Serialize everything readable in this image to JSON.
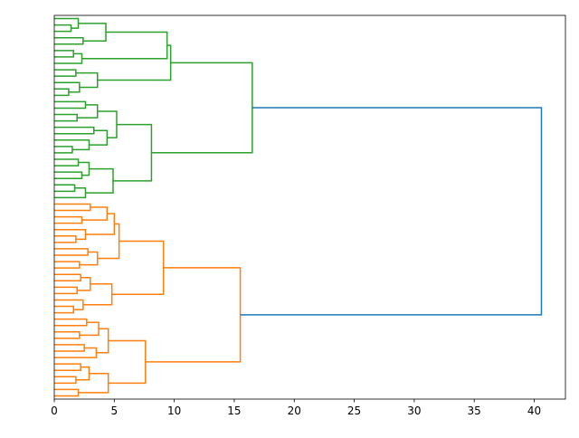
{
  "chart_data": {
    "type": "dendrogram",
    "orientation": "right",
    "xlim": [
      0,
      42.6
    ],
    "xticks": [
      0,
      5,
      10,
      15,
      20,
      25,
      30,
      35,
      40
    ],
    "tree": {
      "height": 40.6,
      "color": "#1f77b4",
      "children": [
        {
          "height": 16.5,
          "color": "#2ca02c",
          "children": [
            {
              "height": 9.7,
              "children": [
                {
                  "height": 9.4,
                  "children": [
                    {
                      "height": 4.3,
                      "children": [
                        {
                          "height": 2.0,
                          "children": [
                            {
                              "height": 0
                            },
                            {
                              "height": 1.4,
                              "children": [
                                {
                                  "height": 0
                                },
                                {
                                  "height": 0
                                }
                              ]
                            }
                          ]
                        },
                        {
                          "height": 2.4,
                          "children": [
                            {
                              "height": 0
                            },
                            {
                              "height": 0
                            }
                          ]
                        }
                      ]
                    },
                    {
                      "height": 2.3,
                      "children": [
                        {
                          "height": 1.6,
                          "children": [
                            {
                              "height": 0
                            },
                            {
                              "height": 0
                            }
                          ]
                        },
                        {
                          "height": 0
                        }
                      ]
                    }
                  ]
                },
                {
                  "height": 3.6,
                  "children": [
                    {
                      "height": 1.8,
                      "children": [
                        {
                          "height": 0
                        },
                        {
                          "height": 0
                        }
                      ]
                    },
                    {
                      "height": 2.1,
                      "children": [
                        {
                          "height": 0
                        },
                        {
                          "height": 1.2,
                          "children": [
                            {
                              "height": 0
                            },
                            {
                              "height": 0
                            }
                          ]
                        }
                      ]
                    }
                  ]
                }
              ]
            },
            {
              "height": 8.1,
              "children": [
                {
                  "height": 5.2,
                  "children": [
                    {
                      "height": 3.6,
                      "children": [
                        {
                          "height": 2.6,
                          "children": [
                            {
                              "height": 0
                            },
                            {
                              "height": 0
                            }
                          ]
                        },
                        {
                          "height": 1.9,
                          "children": [
                            {
                              "height": 0
                            },
                            {
                              "height": 0
                            }
                          ]
                        }
                      ]
                    },
                    {
                      "height": 4.4,
                      "children": [
                        {
                          "height": 3.3,
                          "children": [
                            {
                              "height": 0
                            },
                            {
                              "height": 0
                            }
                          ]
                        },
                        {
                          "height": 2.9,
                          "children": [
                            {
                              "height": 0
                            },
                            {
                              "height": 1.5,
                              "children": [
                                {
                                  "height": 0
                                },
                                {
                                  "height": 0
                                }
                              ]
                            }
                          ]
                        }
                      ]
                    }
                  ]
                },
                {
                  "height": 4.9,
                  "children": [
                    {
                      "height": 2.9,
                      "children": [
                        {
                          "height": 2.0,
                          "children": [
                            {
                              "height": 0
                            },
                            {
                              "height": 0
                            }
                          ]
                        },
                        {
                          "height": 2.3,
                          "children": [
                            {
                              "height": 0
                            },
                            {
                              "height": 0
                            }
                          ]
                        }
                      ]
                    },
                    {
                      "height": 2.6,
                      "children": [
                        {
                          "height": 1.7,
                          "children": [
                            {
                              "height": 0
                            },
                            {
                              "height": 0
                            }
                          ]
                        },
                        {
                          "height": 0
                        }
                      ]
                    }
                  ]
                }
              ]
            }
          ]
        },
        {
          "height": 15.5,
          "color": "#ff7f0e",
          "children": [
            {
              "height": 9.1,
              "children": [
                {
                  "height": 5.4,
                  "children": [
                    {
                      "height": 5.0,
                      "children": [
                        {
                          "height": 4.4,
                          "children": [
                            {
                              "height": 3.0,
                              "children": [
                                {
                                  "height": 0
                                },
                                {
                                  "height": 0
                                }
                              ]
                            },
                            {
                              "height": 2.3,
                              "children": [
                                {
                                  "height": 0
                                },
                                {
                                  "height": 0
                                }
                              ]
                            }
                          ]
                        },
                        {
                          "height": 2.6,
                          "children": [
                            {
                              "height": 0
                            },
                            {
                              "height": 1.8,
                              "children": [
                                {
                                  "height": 0
                                },
                                {
                                  "height": 0
                                }
                              ]
                            }
                          ]
                        }
                      ]
                    },
                    {
                      "height": 3.6,
                      "children": [
                        {
                          "height": 2.8,
                          "children": [
                            {
                              "height": 0
                            },
                            {
                              "height": 0
                            }
                          ]
                        },
                        {
                          "height": 2.1,
                          "children": [
                            {
                              "height": 0
                            },
                            {
                              "height": 0
                            }
                          ]
                        }
                      ]
                    }
                  ]
                },
                {
                  "height": 4.8,
                  "children": [
                    {
                      "height": 3.0,
                      "children": [
                        {
                          "height": 2.2,
                          "children": [
                            {
                              "height": 0
                            },
                            {
                              "height": 0
                            }
                          ]
                        },
                        {
                          "height": 1.9,
                          "children": [
                            {
                              "height": 0
                            },
                            {
                              "height": 0
                            }
                          ]
                        }
                      ]
                    },
                    {
                      "height": 2.4,
                      "children": [
                        {
                          "height": 0
                        },
                        {
                          "height": 1.6,
                          "children": [
                            {
                              "height": 0
                            },
                            {
                              "height": 0
                            }
                          ]
                        }
                      ]
                    }
                  ]
                }
              ]
            },
            {
              "height": 7.6,
              "children": [
                {
                  "height": 4.5,
                  "children": [
                    {
                      "height": 3.7,
                      "children": [
                        {
                          "height": 2.7,
                          "children": [
                            {
                              "height": 0
                            },
                            {
                              "height": 0
                            }
                          ]
                        },
                        {
                          "height": 2.1,
                          "children": [
                            {
                              "height": 0
                            },
                            {
                              "height": 0
                            }
                          ]
                        }
                      ]
                    },
                    {
                      "height": 3.5,
                      "children": [
                        {
                          "height": 2.5,
                          "children": [
                            {
                              "height": 0
                            },
                            {
                              "height": 0
                            }
                          ]
                        },
                        {
                          "height": 0
                        }
                      ]
                    }
                  ]
                },
                {
                  "height": 4.5,
                  "children": [
                    {
                      "height": 2.9,
                      "children": [
                        {
                          "height": 2.2,
                          "children": [
                            {
                              "height": 0
                            },
                            {
                              "height": 0
                            }
                          ]
                        },
                        {
                          "height": 1.8,
                          "children": [
                            {
                              "height": 0
                            },
                            {
                              "height": 0
                            }
                          ]
                        }
                      ]
                    },
                    {
                      "height": 2.0,
                      "children": [
                        {
                          "height": 0
                        },
                        {
                          "height": 0
                        }
                      ]
                    }
                  ]
                }
              ]
            }
          ]
        }
      ]
    }
  }
}
